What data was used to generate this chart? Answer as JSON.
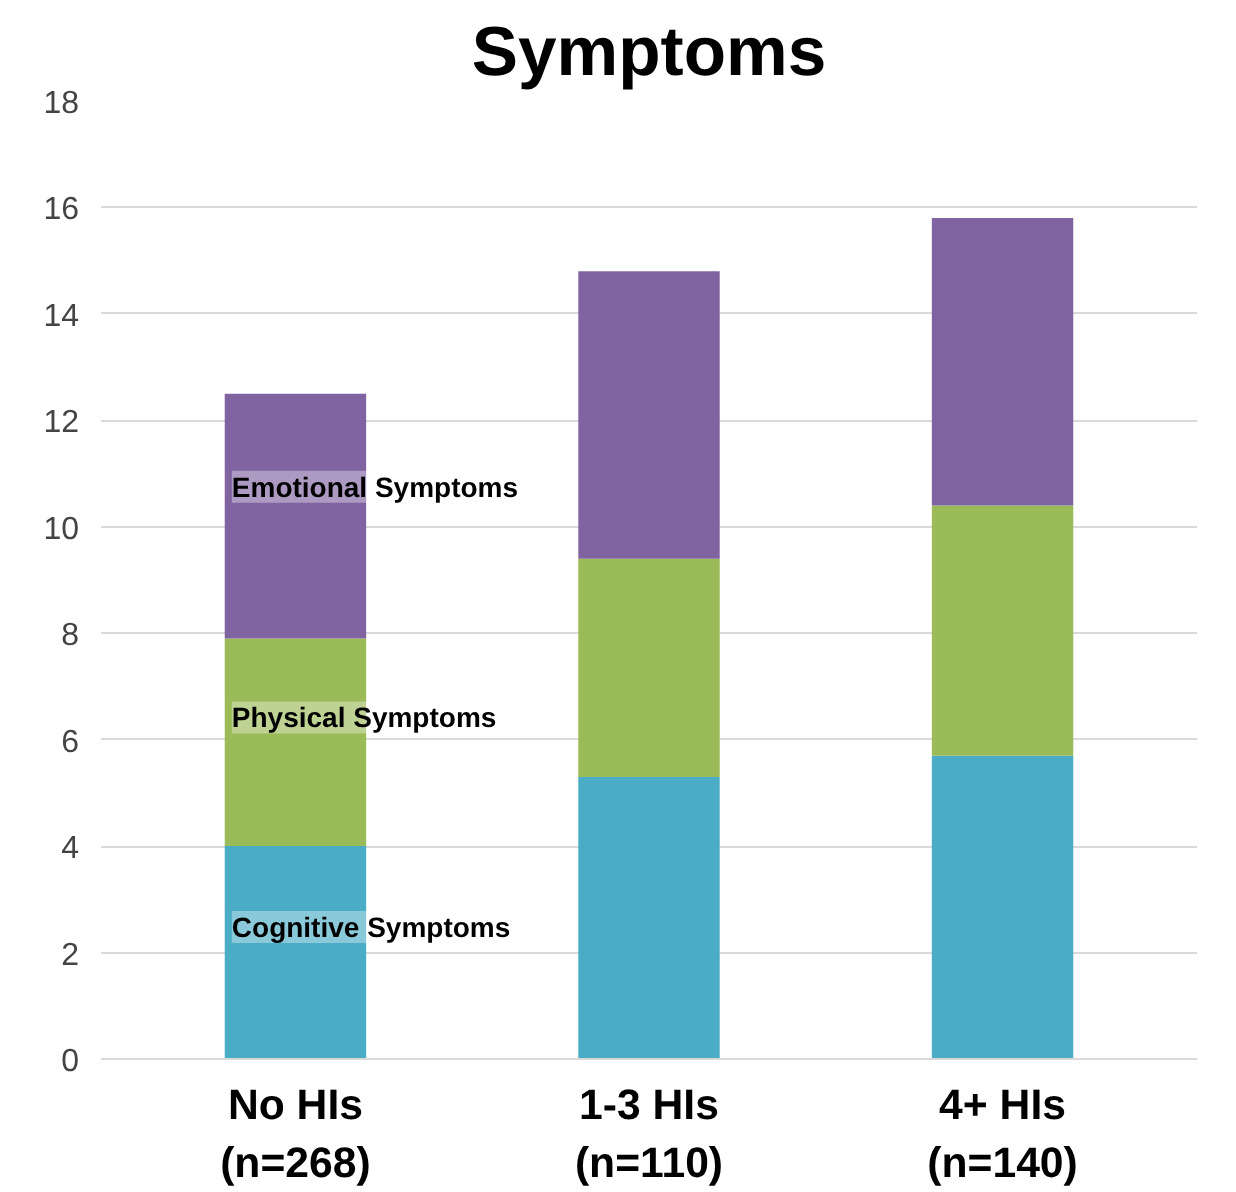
{
  "chart_data": {
    "type": "bar",
    "title": "Symptoms",
    "stacked": true,
    "categories": [
      "No HIs\n(n=268)",
      "1-3 HIs\n(n=110)",
      "4+ HIs\n(n=140)"
    ],
    "series": [
      {
        "name": "Cognitive Symptoms",
        "color": "#4bacc6",
        "values": [
          4.0,
          5.3,
          5.7
        ]
      },
      {
        "name": "Physical Symptoms",
        "color": "#9bbb59",
        "values": [
          3.9,
          4.1,
          4.7
        ]
      },
      {
        "name": "Emotional Symptoms",
        "color": "#8064a2",
        "values": [
          4.6,
          5.4,
          5.4
        ]
      }
    ],
    "ylim": [
      0,
      18
    ],
    "yticks": [
      0,
      2,
      4,
      6,
      8,
      10,
      12,
      14,
      16,
      18
    ],
    "grid": "y",
    "legend": false
  }
}
